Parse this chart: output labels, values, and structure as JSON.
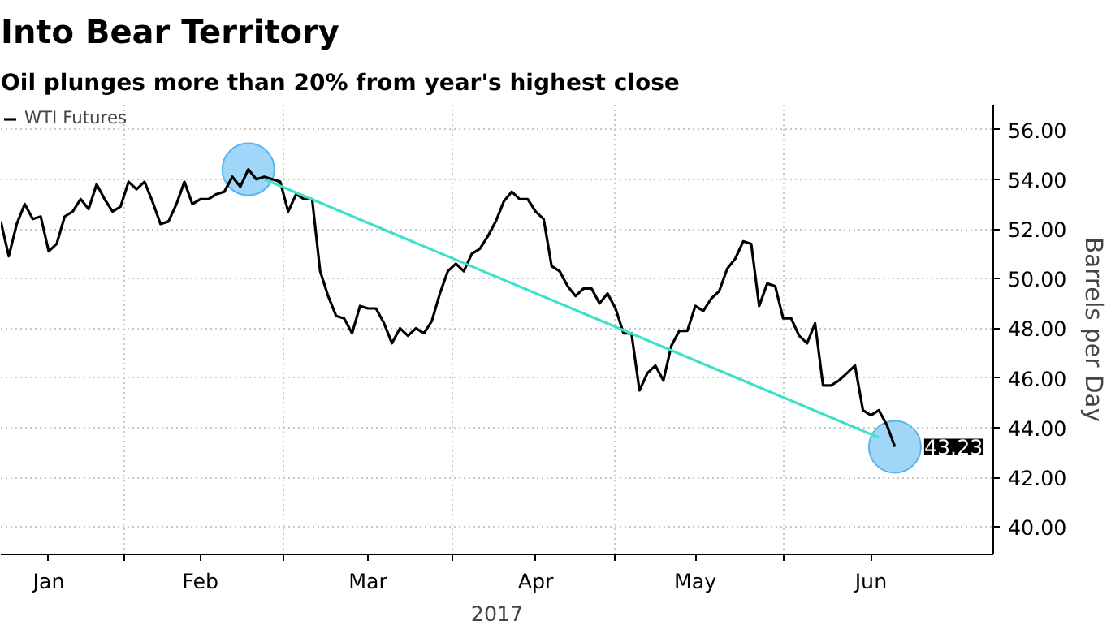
{
  "chart_data": {
    "type": "line",
    "title": "Into Bear Territory",
    "subtitle": "Oil plunges more than 20% from year's highest close",
    "xlabel": "2017",
    "ylabel": "Barrels per Day",
    "categories": [
      null,
      null,
      null,
      null,
      null,
      null,
      "Jan",
      null,
      null,
      null,
      null,
      null,
      null,
      null,
      null,
      null,
      null,
      null,
      null,
      null,
      null,
      null,
      null,
      null,
      null,
      "Feb",
      null,
      null,
      null,
      null,
      null,
      null,
      null,
      null,
      null,
      null,
      null,
      null,
      null,
      null,
      null,
      null,
      null,
      null,
      null,
      null,
      "Mar",
      null,
      null,
      null,
      null,
      null,
      null,
      null,
      null,
      null,
      null,
      null,
      null,
      null,
      null,
      null,
      null,
      null,
      null,
      null,
      null,
      "Apr",
      null,
      null,
      null,
      null,
      null,
      null,
      null,
      null,
      null,
      null,
      null,
      null,
      null,
      null,
      null,
      null,
      null,
      null,
      null,
      "May",
      null,
      null,
      null,
      null,
      null,
      null,
      null,
      null,
      null,
      null,
      null,
      null,
      null,
      null,
      null,
      null,
      null,
      null,
      null,
      null,
      null,
      "Jun",
      null,
      null,
      null
    ],
    "series": [
      {
        "name": "WTI Futures",
        "color": "#000000",
        "values": [
          52.3,
          50.9,
          52.2,
          53.0,
          52.4,
          52.5,
          51.1,
          51.4,
          52.5,
          52.7,
          53.2,
          52.8,
          53.8,
          53.2,
          52.7,
          52.9,
          53.9,
          53.6,
          53.9,
          53.1,
          52.2,
          52.3,
          53.0,
          53.9,
          53.0,
          53.2,
          53.2,
          53.4,
          53.5,
          54.1,
          53.7,
          54.4,
          54.0,
          54.1,
          54.0,
          53.9,
          52.7,
          53.4,
          53.2,
          53.2,
          50.3,
          49.3,
          48.5,
          48.4,
          47.8,
          48.9,
          48.8,
          48.8,
          48.2,
          47.4,
          48.0,
          47.7,
          48.0,
          47.8,
          48.3,
          49.4,
          50.3,
          50.6,
          50.3,
          51.0,
          51.2,
          51.7,
          52.3,
          53.1,
          53.5,
          53.2,
          53.2,
          52.7,
          52.4,
          50.5,
          50.3,
          49.7,
          49.3,
          49.6,
          49.6,
          49.0,
          49.4,
          48.8,
          47.8,
          47.8,
          45.5,
          46.2,
          46.5,
          45.9,
          47.3,
          47.9,
          47.9,
          48.9,
          48.7,
          49.2,
          49.5,
          50.4,
          50.8,
          51.5,
          51.4,
          48.9,
          49.8,
          49.7,
          48.4,
          48.4,
          47.7,
          47.4,
          48.2,
          45.7,
          45.7,
          45.9,
          46.2,
          46.5,
          44.7,
          44.5,
          44.7,
          44.1,
          43.23
        ],
        "value_labels": [
          null,
          null,
          null,
          null,
          null,
          null,
          null,
          null,
          null,
          null,
          null,
          null,
          null,
          null,
          null,
          null,
          null,
          null,
          null,
          null,
          null,
          null,
          null,
          null,
          null,
          null,
          null,
          null,
          null,
          null,
          null,
          null,
          null,
          null,
          null,
          null,
          null,
          null,
          null,
          null,
          null,
          null,
          null,
          null,
          null,
          null,
          null,
          null,
          null,
          null,
          null,
          null,
          null,
          null,
          null,
          null,
          null,
          null,
          null,
          null,
          null,
          null,
          null,
          null,
          null,
          null,
          null,
          null,
          null,
          null,
          null,
          null,
          null,
          null,
          null,
          null,
          null,
          null,
          null,
          null,
          null,
          null,
          null,
          null,
          null,
          null,
          null,
          null,
          null,
          null,
          null,
          null,
          null,
          null,
          null,
          null,
          null,
          null,
          null,
          null,
          null,
          null,
          null,
          null,
          null,
          null,
          null,
          null,
          null,
          null,
          null,
          null,
          "43.23"
        ]
      },
      {
        "type": "scatter",
        "color": "#8fd0f8",
        "marker": "circle",
        "values": [
          null,
          null,
          null,
          null,
          null,
          null,
          null,
          null,
          null,
          null,
          null,
          null,
          null,
          null,
          null,
          null,
          null,
          null,
          null,
          null,
          null,
          null,
          null,
          null,
          null,
          null,
          null,
          null,
          null,
          null,
          null,
          54.4,
          null,
          null,
          null,
          null,
          null,
          null,
          null,
          null,
          null,
          null,
          null,
          null,
          null,
          null,
          null,
          null,
          null,
          null,
          null,
          null,
          null,
          null,
          null,
          null,
          null,
          null,
          null,
          null,
          null,
          null,
          null,
          null,
          null,
          null,
          null,
          null,
          null,
          null,
          null,
          null,
          null,
          null,
          null,
          null,
          null,
          null,
          null,
          null,
          null,
          null,
          null,
          null,
          null,
          null,
          null,
          null,
          null,
          null,
          null,
          null,
          null,
          null,
          null,
          null,
          null,
          null,
          null,
          null,
          null,
          null,
          null,
          null,
          null,
          null,
          null,
          null,
          null,
          null,
          null,
          null,
          43.23
        ]
      },
      {
        "type": "line",
        "color": "#3de0c8",
        "values": [
          null,
          null,
          null,
          null,
          null,
          null,
          null,
          null,
          null,
          null,
          null,
          null,
          null,
          null,
          null,
          null,
          null,
          null,
          null,
          null,
          null,
          null,
          null,
          null,
          null,
          null,
          null,
          null,
          null,
          null,
          null,
          null,
          null,
          54.0,
          null,
          null,
          null,
          null,
          null,
          null,
          null,
          null,
          null,
          null,
          null,
          null,
          null,
          null,
          null,
          null,
          null,
          null,
          null,
          null,
          null,
          null,
          null,
          null,
          null,
          null,
          null,
          null,
          null,
          null,
          null,
          null,
          null,
          null,
          null,
          null,
          null,
          null,
          null,
          null,
          null,
          null,
          null,
          null,
          null,
          null,
          null,
          null,
          null,
          null,
          null,
          null,
          null,
          null,
          null,
          null,
          null,
          null,
          null,
          null,
          null,
          null,
          null,
          null,
          null,
          null,
          null,
          null,
          null,
          null,
          null,
          null,
          null,
          null,
          null,
          null,
          43.6,
          null,
          null
        ]
      }
    ],
    "ylim": [
      38.9,
      57.0
    ],
    "yticks": [
      {
        "value": 40,
        "label": "40.00"
      },
      {
        "value": 42,
        "label": "42.00"
      },
      {
        "value": 44,
        "label": "44.00"
      },
      {
        "value": 46,
        "label": "46.00"
      },
      {
        "value": 48,
        "label": "48.00"
      },
      {
        "value": 50,
        "label": "50.00"
      },
      {
        "value": 52,
        "label": "52.00"
      },
      {
        "value": 54,
        "label": "54.00"
      },
      {
        "value": 56,
        "label": "56.00"
      }
    ],
    "grid": true,
    "legend": "top left",
    "marker": "none",
    "line_style": "solid"
  }
}
